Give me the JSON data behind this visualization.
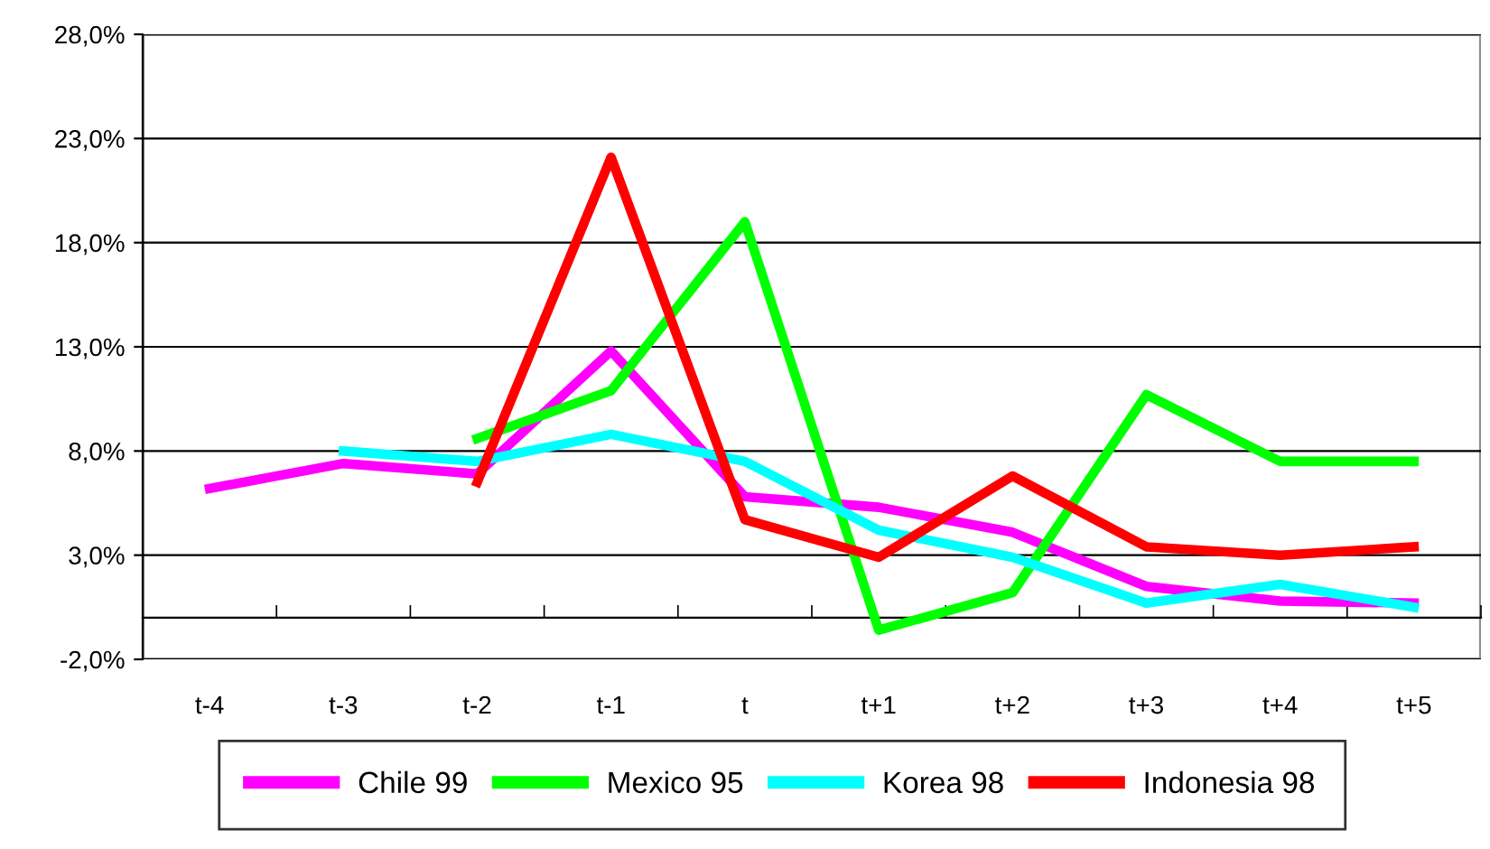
{
  "chart_data": {
    "type": "line",
    "categories": [
      "t-4",
      "t-3",
      "t-2",
      "t-1",
      "t",
      "t+1",
      "t+2",
      "t+3",
      "t+4",
      "t+5"
    ],
    "series": [
      {
        "name": "Chile 99",
        "color": "#ff00ff",
        "values": [
          6.2,
          7.4,
          6.9,
          12.8,
          5.8,
          5.3,
          4.1,
          1.5,
          0.8,
          0.7
        ]
      },
      {
        "name": "Mexico 95",
        "color": "#00ff00",
        "values": [
          null,
          null,
          8.6,
          10.9,
          19.0,
          -0.6,
          1.2,
          10.7,
          7.5,
          7.5
        ]
      },
      {
        "name": "Korea 98",
        "color": "#00ffff",
        "values": [
          null,
          8.0,
          7.5,
          8.8,
          7.5,
          4.2,
          2.9,
          0.7,
          1.6,
          0.5
        ]
      },
      {
        "name": "Indonesia 98",
        "color": "#ff0000",
        "values": [
          null,
          null,
          6.5,
          22.1,
          4.7,
          2.9,
          6.8,
          3.4,
          3.0,
          3.4
        ]
      }
    ],
    "ylim": [
      -2,
      28
    ],
    "yticks": [
      {
        "value": -2,
        "label": "-2,0%"
      },
      {
        "value": 3,
        "label": "3,0%"
      },
      {
        "value": 8,
        "label": "8,0%"
      },
      {
        "value": 13,
        "label": "13,0%"
      },
      {
        "value": 18,
        "label": "18,0%"
      },
      {
        "value": 23,
        "label": "23,0%"
      },
      {
        "value": 28,
        "label": "28,0%"
      }
    ],
    "grid": "y",
    "legend": "bottom",
    "marker": "none",
    "line_style": "solid"
  }
}
